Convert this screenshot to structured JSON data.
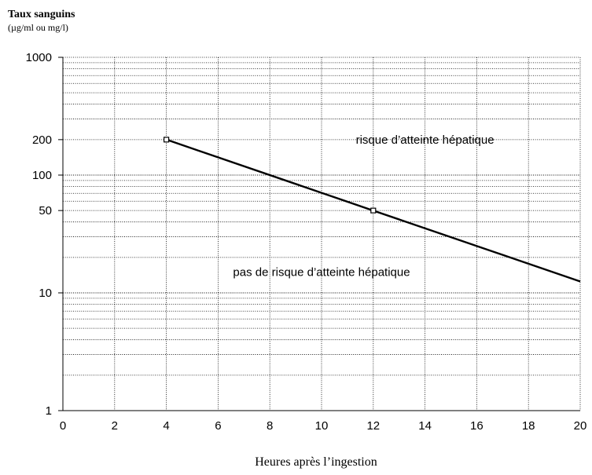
{
  "chart_data": {
    "type": "line",
    "yscale": "log",
    "y_title": "Taux sanguins",
    "y_unit": "(µg/ml ou mg/l)",
    "xlabel": "Heures après l’ingestion",
    "xlim": [
      0,
      20
    ],
    "ylim": [
      1,
      1000
    ],
    "x_ticks": [
      "0",
      "2",
      "4",
      "6",
      "8",
      "10",
      "12",
      "14",
      "16",
      "18",
      "20"
    ],
    "y_ticks": [
      {
        "value": 1000,
        "label": "1000"
      },
      {
        "value": 200,
        "label": "200"
      },
      {
        "value": 100,
        "label": "100"
      },
      {
        "value": 50,
        "label": "50"
      },
      {
        "value": 10,
        "label": "10"
      },
      {
        "value": 1,
        "label": "1"
      }
    ],
    "grid": true,
    "series": [
      {
        "values": [
          {
            "x": 4,
            "y": 200
          },
          {
            "x": 12,
            "y": 50
          },
          {
            "x": 20,
            "y": 12.5
          }
        ]
      }
    ],
    "markers": [
      {
        "x": 4,
        "y": 200
      },
      {
        "x": 12,
        "y": 50
      }
    ],
    "annotations": [
      {
        "text": "risque d’atteinte hépatique",
        "x": 14,
        "y": 200
      },
      {
        "text": "pas de risque d’atteinte hépatique",
        "x": 10,
        "y": 15
      }
    ]
  }
}
